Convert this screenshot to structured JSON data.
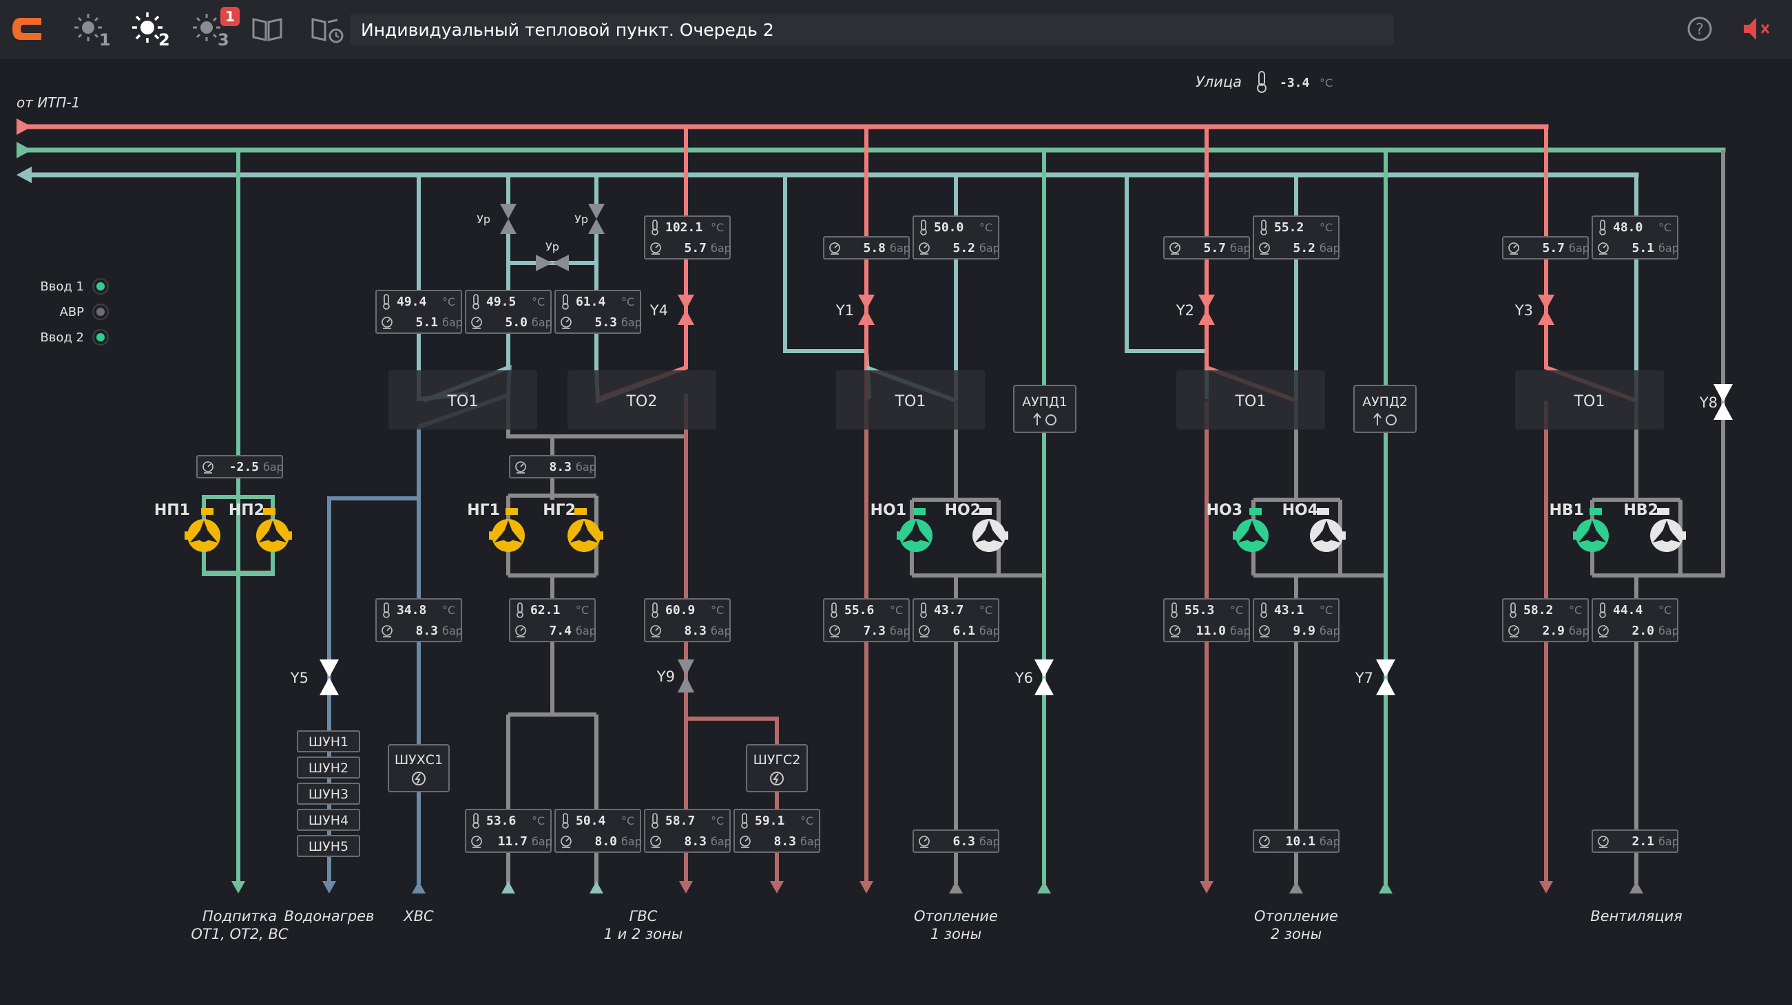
{
  "header": {
    "title": "Индивидуальный тепловой пункт. Очередь 2",
    "mode_buttons": [
      "1",
      "2",
      "3"
    ],
    "alarm_badge": "1"
  },
  "street": {
    "label": "Улица",
    "temp": "-3.4",
    "unit": "°C"
  },
  "source_label": "от ИТП-1",
  "units": {
    "temp": "°C",
    "pressure": "бар"
  },
  "inputs": [
    {
      "label": "Ввод 1",
      "state_color": "#2fd08f"
    },
    {
      "label": "АВР",
      "state_color": "#6b6d73"
    },
    {
      "label": "Ввод 2",
      "state_color": "#2fd08f"
    }
  ],
  "colors": {
    "supply": "#ef7b7b",
    "return": "#8fc1bf",
    "green": "#6fbf9a",
    "cold": "#6b8aa8",
    "warm_return": "#b56a6a",
    "pump_yellow": "#f2b705",
    "pump_green": "#2fd08f"
  },
  "exchangers": [
    "ТО1",
    "ТО2",
    "ТО1",
    "ТО1",
    "ТО1"
  ],
  "aupd": [
    "АУПД1",
    "АУПД2"
  ],
  "valves": [
    "Ур",
    "Ур",
    "Ур",
    "Y4",
    "Y1",
    "Y2",
    "Y3",
    "Y5",
    "Y9",
    "Y6",
    "Y7",
    "Y8"
  ],
  "pumps": [
    "НП1",
    "НП2",
    "НГ1",
    "НГ2",
    "НО1",
    "НО2",
    "НО3",
    "НО4",
    "НВ1",
    "НВ2"
  ],
  "shun": [
    "ШУН1",
    "ШУН2",
    "ШУН3",
    "ШУН4",
    "ШУН5"
  ],
  "cabinets": [
    "ШУХС1",
    "ШУГС2"
  ],
  "sensors": [
    {
      "t": "102.1",
      "p": "5.7"
    },
    {
      "p": "5.8"
    },
    {
      "t": "50.0",
      "p": "5.2"
    },
    {
      "p": "5.7"
    },
    {
      "t": "55.2",
      "p": "5.2"
    },
    {
      "p": "5.7"
    },
    {
      "t": "48.0",
      "p": "5.1"
    },
    {
      "t": "49.4",
      "p": "5.1"
    },
    {
      "t": "49.5",
      "p": "5.0"
    },
    {
      "t": "61.4",
      "p": "5.3"
    },
    {
      "p": "-2.5"
    },
    {
      "p": "8.3"
    },
    {
      "t": "34.8",
      "p": "8.3"
    },
    {
      "t": "62.1",
      "p": "7.4"
    },
    {
      "t": "60.9",
      "p": "8.3"
    },
    {
      "t": "55.6",
      "p": "7.3"
    },
    {
      "t": "43.7",
      "p": "6.1"
    },
    {
      "t": "55.3",
      "p": "11.0"
    },
    {
      "t": "43.1",
      "p": "9.9"
    },
    {
      "t": "58.2",
      "p": "2.9"
    },
    {
      "t": "44.4",
      "p": "2.0"
    },
    {
      "t": "53.6",
      "p": "11.7"
    },
    {
      "t": "50.4",
      "p": "8.0"
    },
    {
      "t": "58.7",
      "p": "8.3"
    },
    {
      "t": "59.1",
      "p": "8.3"
    },
    {
      "p": "6.3"
    },
    {
      "p": "10.1"
    },
    {
      "p": "2.1"
    }
  ],
  "bottom_labels": [
    {
      "line1": "Подпитка",
      "line2": "ОТ1, ОТ2, ВС"
    },
    {
      "line1": "Водонагрев",
      "line2": ""
    },
    {
      "line1": "ХВС",
      "line2": ""
    },
    {
      "line1": "ГВС",
      "line2": "1 и 2 зоны"
    },
    {
      "line1": "Отопление",
      "line2": "1 зоны"
    },
    {
      "line1": "Отопление",
      "line2": "2 зоны"
    },
    {
      "line1": "Вентиляция",
      "line2": ""
    }
  ]
}
